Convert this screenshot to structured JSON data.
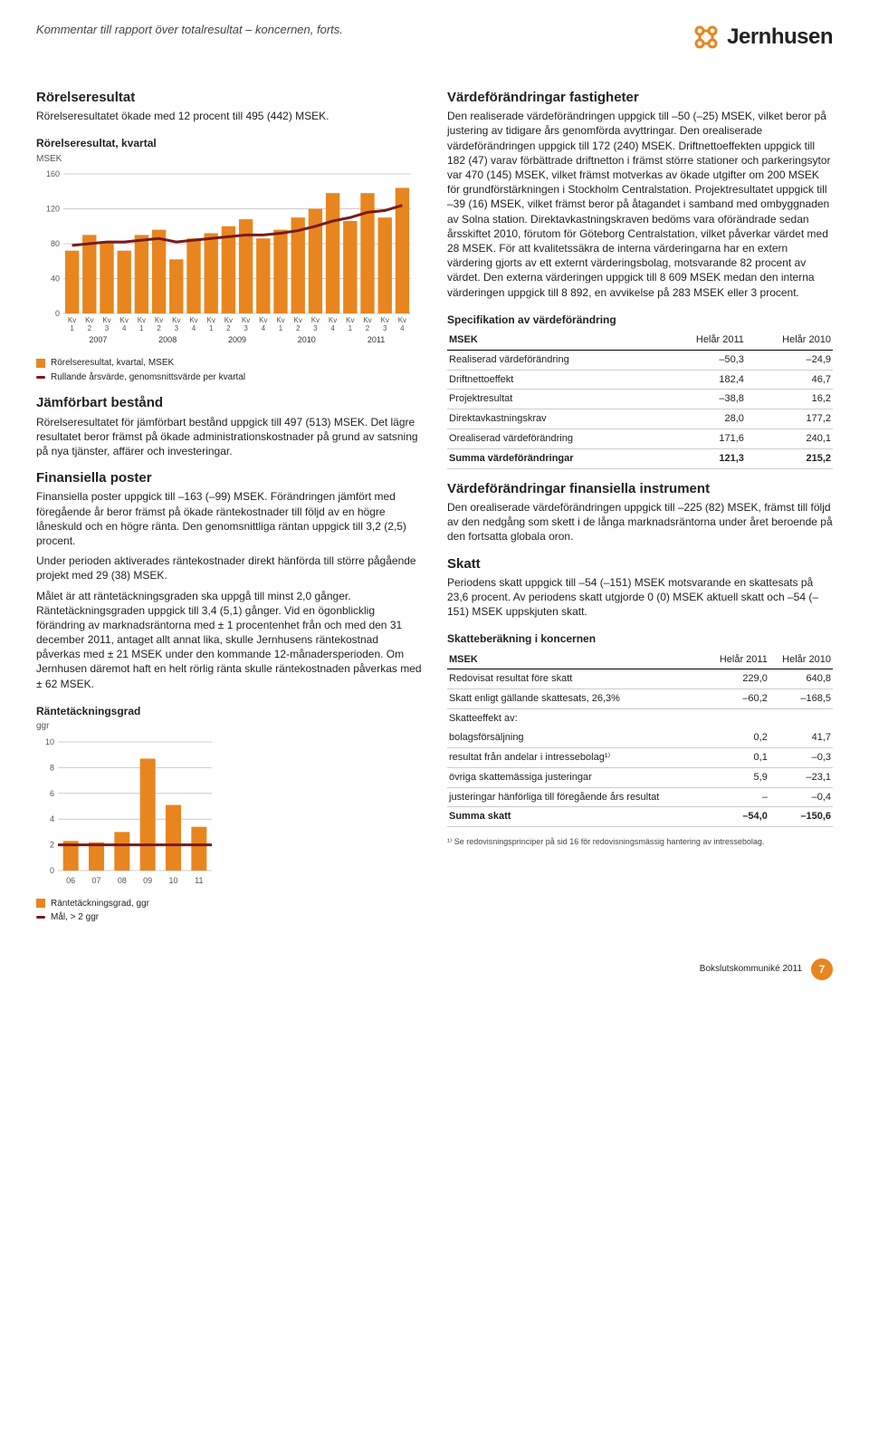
{
  "header": {
    "breadcrumb": "Kommentar till rapport över totalresultat – koncernen, forts.",
    "brand": "Jernhusen",
    "brand_color": "#e8851f"
  },
  "left": {
    "sec1_title": "Rörelseresultat",
    "sec1_p1": "Rörelseresultatet ökade med 12 procent till 495 (442) MSEK.",
    "chart1": {
      "title": "Rörelseresultat, kvartal",
      "unit": "MSEK",
      "type": "bar",
      "ylim": [
        0,
        160
      ],
      "yticks": [
        0,
        40,
        80,
        120,
        160
      ],
      "groups": [
        "2007",
        "2008",
        "2009",
        "2010",
        "2011"
      ],
      "sub_labels": [
        "Kv\n1",
        "Kv\n2",
        "Kv\n3",
        "Kv\n4"
      ],
      "values": [
        72,
        90,
        82,
        72,
        90,
        96,
        62,
        86,
        92,
        100,
        108,
        86,
        96,
        110,
        120,
        138,
        106,
        138,
        110,
        144
      ],
      "line_values": [
        78,
        80,
        82,
        82,
        84,
        86,
        82,
        84,
        86,
        88,
        90,
        90,
        92,
        95,
        100,
        106,
        110,
        116,
        118,
        124
      ],
      "bar_color": "#e8851f",
      "line_color": "#7a1a1a",
      "grid_color": "#cccccc",
      "legend1": "Rörelseresultat, kvartal, MSEK",
      "legend2": "Rullande årsvärde, genomsnittsvärde per kvartal"
    },
    "sec2_title": "Jämförbart bestånd",
    "sec2_p1": "Rörelseresultatet för jämförbart bestånd uppgick till 497 (513) MSEK. Det lägre resultatet beror främst på ökade administrationskostnader på grund av satsning på nya tjänster, affärer och investeringar.",
    "sec3_title": "Finansiella poster",
    "sec3_p1": "Finansiella poster uppgick till –163 (–99) MSEK. Förändringen jämfört med föregående år beror främst på ökade räntekostnader till följd av en högre låneskuld och en högre ränta. Den genomsnittliga räntan uppgick till 3,2 (2,5) procent.",
    "sec3_p2": "Under perioden aktiverades räntekostnader direkt hänförda till större pågående projekt med 29 (38) MSEK.",
    "sec3_p3": "Målet är att räntetäckningsgraden ska uppgå till minst 2,0 gånger. Räntetäckningsgraden uppgick till 3,4 (5,1) gånger. Vid en ögonblicklig förändring av marknadsräntorna med ± 1 procentenhet från och med den 31 december 2011, antaget allt annat lika, skulle Jernhusens räntekostnad påverkas med ± 21 MSEK under den kommande 12-månadersperioden. Om Jernhusen däremot haft en helt rörlig ränta skulle räntekostnaden påverkas med ± 62 MSEK.",
    "chart2": {
      "title": "Räntetäckningsgrad",
      "unit": "ggr",
      "type": "bar",
      "ylim": [
        0,
        10
      ],
      "yticks": [
        0,
        2,
        4,
        6,
        8,
        10
      ],
      "labels": [
        "06",
        "07",
        "08",
        "09",
        "10",
        "11"
      ],
      "values": [
        2.3,
        2.2,
        3.0,
        8.7,
        5.1,
        3.4
      ],
      "goal": 2,
      "bar_color": "#e8851f",
      "line_color": "#7a1a1a",
      "grid_color": "#cccccc",
      "legend1": "Räntetäckningsgrad, ggr",
      "legend2": "Mål, > 2 ggr"
    }
  },
  "right": {
    "sec1_title": "Värdeförändringar fastigheter",
    "sec1_p1": "Den realiserade värdeförändringen uppgick till –50 (–25) MSEK, vilket beror på justering av tidigare års genomförda avyttringar. Den orealiserade värdeförändringen uppgick till 172 (240) MSEK. Driftnettoeffekten uppgick till 182 (47) varav förbättrade driftnetton i främst större stationer och parkeringsytor var 470 (145) MSEK, vilket främst motverkas av ökade utgifter om 200 MSEK för grundförstärkningen i Stockholm Centralstation. Projektresultatet uppgick till –39 (16) MSEK, vilket främst beror på åtagandet i samband med ombyggnaden av Solna station. Direktavkastningskraven bedöms vara oförändrade sedan årsskiftet 2010, förutom för Göteborg Centralstation, vilket påverkar värdet med 28 MSEK. För att kvalitetssäkra de interna värderingarna har en extern värdering gjorts av ett externt värderingsbolag, motsvarande 82 procent av värdet. Den externa värderingen uppgick till 8 609 MSEK medan den interna värderingen uppgick till 8 892, en avvikelse på 283 MSEK eller 3 procent.",
    "table1": {
      "title": "Specifikation av värdeförändring",
      "col0": "MSEK",
      "col1": "Helår 2011",
      "col2": "Helår 2010",
      "rows": [
        {
          "l": "Realiserad värdeförändring",
          "a": "–50,3",
          "b": "–24,9"
        },
        {
          "l": "Driftnettoeffekt",
          "a": "182,4",
          "b": "46,7"
        },
        {
          "l": "Projektresultat",
          "a": "–38,8",
          "b": "16,2"
        },
        {
          "l": "Direktavkastningskrav",
          "a": "28,0",
          "b": "177,2"
        },
        {
          "l": "Orealiserad värdeförändring",
          "a": "171,6",
          "b": "240,1"
        },
        {
          "l": "Summa värdeförändringar",
          "a": "121,3",
          "b": "215,2",
          "sum": true
        }
      ]
    },
    "sec2_title": "Värdeförändringar finansiella instrument",
    "sec2_p1": "Den orealiserade värdeförändringen uppgick till –225 (82) MSEK, främst till följd av den nedgång som skett i de långa marknadsräntorna under året beroende på den fortsatta globala oron.",
    "sec3_title": "Skatt",
    "sec3_p1": "Periodens skatt uppgick till –54 (–151) MSEK motsvarande en skattesats på 23,6 procent. Av periodens skatt utgjorde 0 (0) MSEK aktuell skatt och –54 (–151) MSEK uppskjuten skatt.",
    "table2": {
      "title": "Skatteberäkning i koncernen",
      "col0": "MSEK",
      "col1": "Helår 2011",
      "col2": "Helår 2010",
      "rows": [
        {
          "l": "Redovisat resultat före skatt",
          "a": "229,0",
          "b": "640,8"
        },
        {
          "l": "Skatt enligt gällande skattesats, 26,3%",
          "a": "–60,2",
          "b": "–168,5"
        },
        {
          "l": "Skatteeffekt av:",
          "a": "",
          "b": "",
          "nob": true
        },
        {
          "l": "   bolagsförsäljning",
          "a": "0,2",
          "b": "41,7"
        },
        {
          "l": "   resultat från andelar i intressebolag¹⁾",
          "a": "0,1",
          "b": "–0,3"
        },
        {
          "l": "   övriga skattemässiga justeringar",
          "a": "5,9",
          "b": "–23,1"
        },
        {
          "l": "   justeringar hänförliga till föregående års resultat",
          "a": "–",
          "b": "–0,4"
        },
        {
          "l": "Summa skatt",
          "a": "–54,0",
          "b": "–150,6",
          "sum": true
        }
      ],
      "footnote": "¹⁾ Se redovisningsprinciper på sid 16 för redovisningsmässig hantering av intressebolag."
    }
  },
  "footer": {
    "label": "Bokslutskommuniké 2011",
    "page": "7",
    "color": "#e8851f"
  }
}
